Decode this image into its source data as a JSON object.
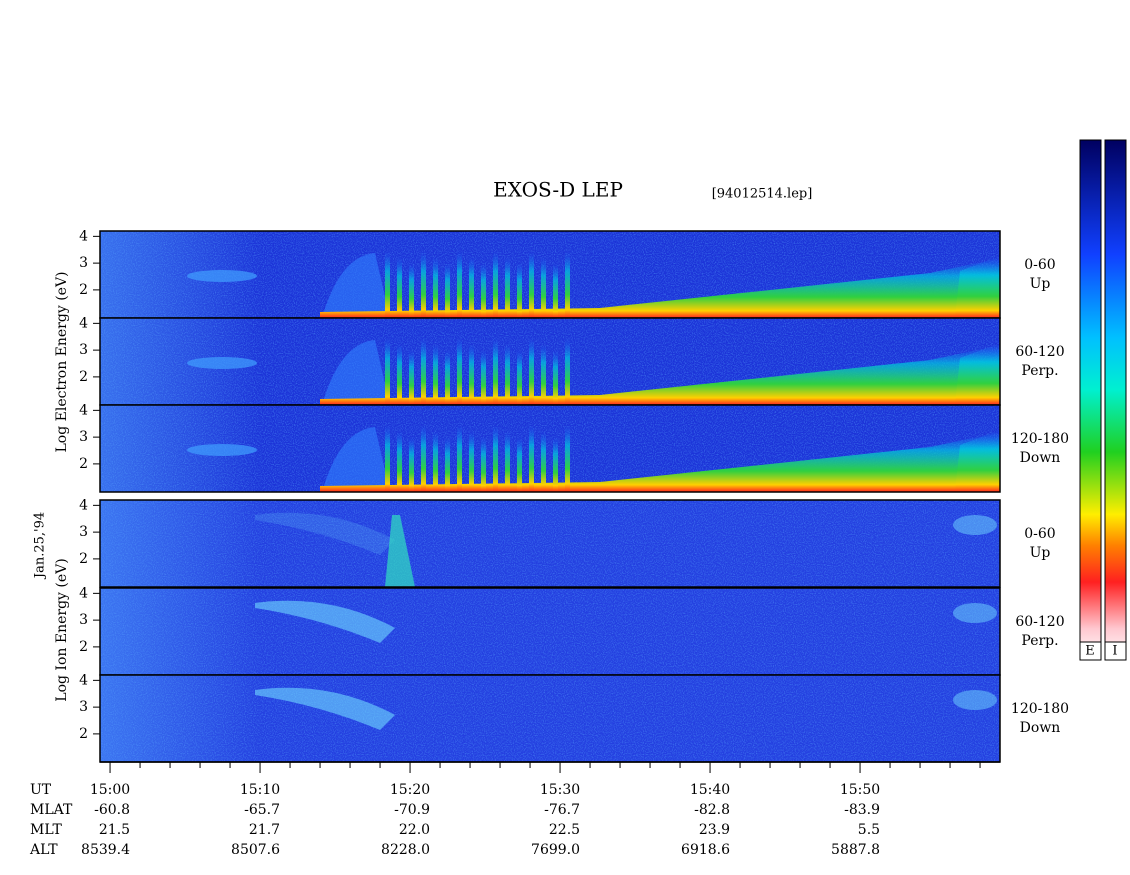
{
  "title": "EXOS-D LEP",
  "file": "[94012514.lep]",
  "date": "Jan.25,'94",
  "groups": [
    {
      "label": "Log Electron Energy (eV)"
    },
    {
      "label": "Log Ion Energy (eV)"
    }
  ],
  "panels": [
    {
      "angle": "0-60",
      "direction": "Up",
      "ylim": [
        0.95,
        4.2
      ],
      "yticks": [
        2,
        3,
        4
      ]
    },
    {
      "angle": "60-120",
      "direction": "Perp.",
      "ylim": [
        0.95,
        4.2
      ],
      "yticks": [
        2,
        3,
        4
      ]
    },
    {
      "angle": "120-180",
      "direction": "Down",
      "ylim": [
        0.95,
        4.2
      ],
      "yticks": [
        2,
        3,
        4
      ]
    },
    {
      "angle": "0-60",
      "direction": "Up",
      "ylim": [
        0.95,
        4.2
      ],
      "yticks": [
        2,
        3,
        4
      ]
    },
    {
      "angle": "60-120",
      "direction": "Perp.",
      "ylim": [
        0.95,
        4.2
      ],
      "yticks": [
        2,
        3,
        4
      ]
    },
    {
      "angle": "120-180",
      "direction": "Down",
      "ylim": [
        0.95,
        4.2
      ],
      "yticks": [
        2,
        3,
        4
      ]
    }
  ],
  "x_axis": {
    "name": "UT",
    "xlim": [
      899.33,
      959.33
    ],
    "ticks": [
      {
        "value": 900,
        "label": "15:00"
      },
      {
        "value": 910,
        "label": "15:10"
      },
      {
        "value": 920,
        "label": "15:20"
      },
      {
        "value": 930,
        "label": "15:30"
      },
      {
        "value": 940,
        "label": "15:40"
      },
      {
        "value": 950,
        "label": "15:50"
      }
    ],
    "minor_ticks": [
      902,
      904,
      906,
      908,
      912,
      914,
      916,
      918,
      922,
      924,
      926,
      928,
      932,
      934,
      936,
      938,
      942,
      944,
      946,
      948,
      952,
      954,
      956,
      958
    ]
  },
  "ephemeris": [
    {
      "name": "MLAT",
      "values": [
        "-60.8",
        "-65.7",
        "-70.9",
        "-76.7",
        "-82.8",
        "-83.9"
      ]
    },
    {
      "name": "MLT",
      "values": [
        "21.5",
        "21.7",
        "22.0",
        "22.5",
        "23.9",
        "5.5"
      ]
    },
    {
      "name": "ALT",
      "values": [
        "8539.4",
        "8507.6",
        "8228.0",
        "7699.0",
        "6918.6",
        "5887.8"
      ]
    }
  ],
  "colorbars": [
    {
      "label": "E"
    },
    {
      "label": "I"
    }
  ]
}
